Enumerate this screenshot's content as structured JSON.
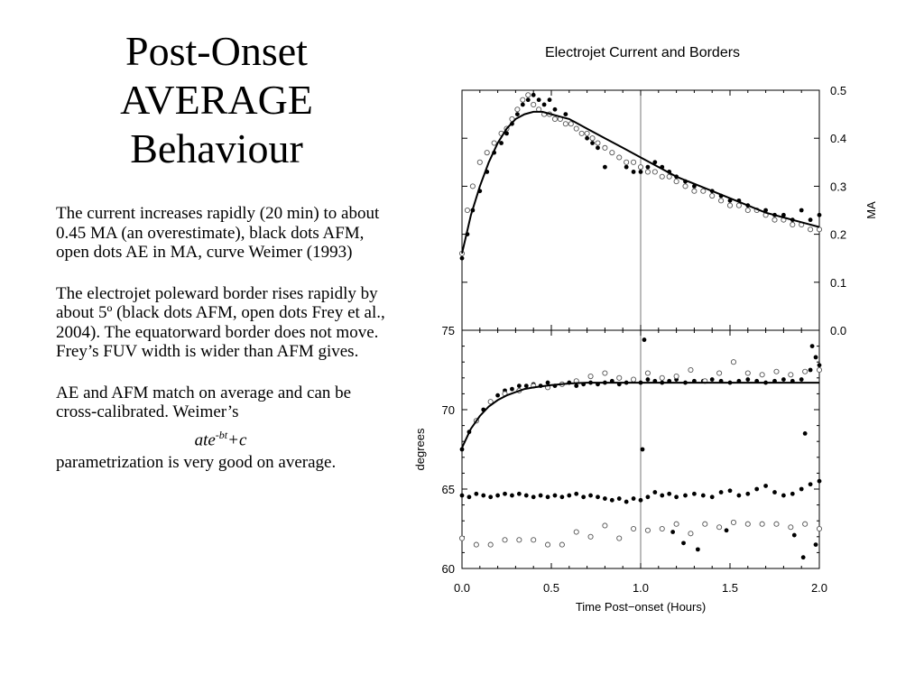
{
  "slide": {
    "title_lines": [
      "Post-Onset",
      "AVERAGE",
      "Behaviour"
    ],
    "paragraphs": [
      "The current increases rapidly (20 min) to about 0.45 MA (an overestimate), black dots AFM, open dots AE in MA, curve Weimer (1993)",
      "The electrojet poleward border rises rapidly by about 5º (black dots AFM, open dots Frey et al., 2004). The equatorward border does not move. Frey’s FUV width is wider than AFM gives.",
      "AE and AFM match on average and can be cross-calibrated. Weimer’s"
    ],
    "formula": {
      "base": "ate",
      "exponent": "-bt",
      "tail": "+c"
    },
    "closing": "parametrization is very good on average."
  },
  "chart_data": [
    {
      "type": "scatter",
      "title": "Electrojet Current and Borders",
      "ylabel": "MA",
      "ylabel_side": "right",
      "xlim": [
        0.0,
        2.0
      ],
      "ylim": [
        0.0,
        0.5
      ],
      "yticks": [
        "0.0",
        "0.1",
        "0.2",
        "0.3",
        "0.4",
        "0.5"
      ],
      "vline_x": 1.0,
      "series": [
        {
          "marker": "filled",
          "x": [
            0.0,
            0.03,
            0.06,
            0.1,
            0.14,
            0.18,
            0.22,
            0.25,
            0.28,
            0.31,
            0.34,
            0.37,
            0.4,
            0.43,
            0.46,
            0.49,
            0.52,
            0.55,
            0.58,
            0.61,
            0.64,
            0.67,
            0.7,
            0.73,
            0.76,
            0.8,
            0.84,
            0.88,
            0.92,
            0.96,
            1.0,
            1.04,
            1.08,
            1.12,
            1.16,
            1.2,
            1.25,
            1.3,
            1.35,
            1.4,
            1.45,
            1.5,
            1.55,
            1.6,
            1.65,
            1.7,
            1.75,
            1.8,
            1.85,
            1.9,
            1.95,
            2.0
          ],
          "y": [
            0.15,
            0.2,
            0.25,
            0.29,
            0.33,
            0.37,
            0.39,
            0.41,
            0.43,
            0.45,
            0.47,
            0.48,
            0.49,
            0.48,
            0.47,
            0.48,
            0.46,
            0.44,
            0.45,
            0.43,
            0.42,
            0.41,
            0.4,
            0.39,
            0.38,
            0.34,
            0.37,
            0.36,
            0.34,
            0.33,
            0.33,
            0.34,
            0.35,
            0.34,
            0.33,
            0.32,
            0.31,
            0.3,
            0.29,
            0.29,
            0.28,
            0.27,
            0.27,
            0.26,
            0.25,
            0.25,
            0.24,
            0.24,
            0.23,
            0.25,
            0.23,
            0.24
          ]
        },
        {
          "marker": "open",
          "x": [
            0.0,
            0.03,
            0.06,
            0.1,
            0.14,
            0.18,
            0.22,
            0.25,
            0.28,
            0.31,
            0.34,
            0.37,
            0.4,
            0.43,
            0.46,
            0.49,
            0.52,
            0.55,
            0.58,
            0.61,
            0.64,
            0.67,
            0.7,
            0.73,
            0.76,
            0.8,
            0.84,
            0.88,
            0.92,
            0.96,
            1.0,
            1.04,
            1.08,
            1.12,
            1.16,
            1.2,
            1.25,
            1.3,
            1.35,
            1.4,
            1.45,
            1.5,
            1.55,
            1.6,
            1.65,
            1.7,
            1.75,
            1.8,
            1.85,
            1.9,
            1.95,
            2.0
          ],
          "y": [
            0.16,
            0.25,
            0.3,
            0.35,
            0.37,
            0.39,
            0.41,
            0.42,
            0.44,
            0.46,
            0.48,
            0.49,
            0.47,
            0.46,
            0.45,
            0.45,
            0.44,
            0.44,
            0.43,
            0.43,
            0.42,
            0.41,
            0.41,
            0.4,
            0.39,
            0.38,
            0.37,
            0.36,
            0.35,
            0.35,
            0.34,
            0.33,
            0.33,
            0.32,
            0.32,
            0.31,
            0.3,
            0.29,
            0.29,
            0.28,
            0.27,
            0.26,
            0.26,
            0.25,
            0.25,
            0.24,
            0.23,
            0.23,
            0.22,
            0.22,
            0.21,
            0.21
          ]
        },
        {
          "marker": "line",
          "x": [
            0.0,
            0.05,
            0.1,
            0.15,
            0.2,
            0.25,
            0.3,
            0.35,
            0.4,
            0.45,
            0.5,
            0.55,
            0.6,
            0.7,
            0.8,
            0.9,
            1.0,
            1.1,
            1.2,
            1.3,
            1.4,
            1.5,
            1.6,
            1.7,
            1.8,
            1.9,
            2.0
          ],
          "y": [
            0.16,
            0.24,
            0.3,
            0.35,
            0.39,
            0.42,
            0.44,
            0.45,
            0.455,
            0.455,
            0.45,
            0.445,
            0.44,
            0.42,
            0.4,
            0.38,
            0.36,
            0.34,
            0.32,
            0.305,
            0.29,
            0.275,
            0.26,
            0.245,
            0.235,
            0.225,
            0.215
          ]
        }
      ]
    },
    {
      "type": "scatter",
      "xlabel": "Time Post−onset (Hours)",
      "ylabel": "degrees",
      "ylabel_side": "left",
      "xlim": [
        0.0,
        2.0
      ],
      "ylim": [
        60,
        75
      ],
      "xticks": [
        "0.0",
        "0.5",
        "1.0",
        "1.5",
        "2.0"
      ],
      "yticks": [
        "60",
        "65",
        "70",
        "75"
      ],
      "vline_x": 1.0,
      "series": [
        {
          "marker": "filled",
          "x": [
            0.0,
            0.04,
            0.08,
            0.12,
            0.16,
            0.2,
            0.24,
            0.28,
            0.32,
            0.36,
            0.4,
            0.44,
            0.48,
            0.52,
            0.56,
            0.6,
            0.64,
            0.68,
            0.72,
            0.76,
            0.8,
            0.84,
            0.88,
            0.92,
            0.96,
            1.0,
            1.04,
            1.08,
            1.12,
            1.16,
            1.2,
            1.25,
            1.3,
            1.35,
            1.4,
            1.45,
            1.5,
            1.55,
            1.6,
            1.65,
            1.7,
            1.75,
            1.8,
            1.85,
            1.9,
            1.95,
            2.0
          ],
          "y": [
            67.5,
            68.6,
            69.3,
            70.0,
            70.5,
            70.9,
            71.2,
            71.3,
            71.5,
            71.5,
            71.6,
            71.5,
            71.7,
            71.5,
            71.6,
            71.7,
            71.5,
            71.6,
            71.7,
            71.6,
            71.7,
            71.8,
            71.6,
            71.7,
            71.8,
            71.7,
            71.9,
            71.8,
            71.7,
            71.8,
            71.9,
            71.7,
            71.8,
            71.8,
            71.9,
            71.8,
            71.7,
            71.8,
            71.9,
            71.8,
            71.7,
            71.8,
            71.9,
            71.8,
            71.9,
            72.5,
            72.8
          ]
        },
        {
          "marker": "filled",
          "x": [
            1.02,
            1.92,
            1.96,
            1.98
          ],
          "y": [
            74.4,
            68.5,
            74.0,
            73.3
          ]
        },
        {
          "marker": "filled",
          "x": [
            0.0,
            0.04,
            0.08,
            0.12,
            0.16,
            0.2,
            0.24,
            0.28,
            0.32,
            0.36,
            0.4,
            0.44,
            0.48,
            0.52,
            0.56,
            0.6,
            0.64,
            0.68,
            0.72,
            0.76,
            0.8,
            0.84,
            0.88,
            0.92,
            0.96,
            1.0,
            1.04,
            1.08,
            1.12,
            1.16,
            1.2,
            1.25,
            1.3,
            1.35,
            1.4,
            1.45,
            1.5,
            1.55,
            1.6,
            1.65,
            1.7,
            1.75,
            1.8,
            1.85,
            1.9,
            1.95,
            2.0
          ],
          "y": [
            64.6,
            64.5,
            64.7,
            64.6,
            64.5,
            64.6,
            64.7,
            64.6,
            64.7,
            64.6,
            64.5,
            64.6,
            64.5,
            64.6,
            64.5,
            64.6,
            64.7,
            64.5,
            64.6,
            64.5,
            64.4,
            64.3,
            64.4,
            64.2,
            64.4,
            64.3,
            64.5,
            64.8,
            64.6,
            64.7,
            64.5,
            64.6,
            64.7,
            64.6,
            64.5,
            64.8,
            64.9,
            64.6,
            64.7,
            65.0,
            65.2,
            64.8,
            64.6,
            64.7,
            65.0,
            65.3,
            65.5
          ]
        },
        {
          "marker": "filled",
          "x": [
            1.01,
            1.18,
            1.24,
            1.32,
            1.48,
            1.86,
            1.91,
            1.98
          ],
          "y": [
            67.5,
            62.3,
            61.6,
            61.2,
            62.4,
            62.1,
            60.7,
            61.5
          ]
        },
        {
          "marker": "open",
          "x": [
            0.0,
            0.08,
            0.16,
            0.24,
            0.32,
            0.4,
            0.48,
            0.56,
            0.64,
            0.72,
            0.8,
            0.88,
            0.96,
            1.04,
            1.12,
            1.2,
            1.28,
            1.36,
            1.44,
            1.52,
            1.6,
            1.68,
            1.76,
            1.84,
            1.92,
            2.0
          ],
          "y": [
            61.9,
            61.5,
            61.5,
            61.8,
            61.8,
            61.8,
            61.5,
            61.5,
            62.3,
            62.0,
            62.7,
            61.9,
            62.5,
            62.4,
            62.5,
            62.8,
            62.2,
            62.8,
            62.6,
            62.9,
            62.8,
            62.8,
            62.8,
            62.6,
            62.8,
            62.5
          ]
        },
        {
          "marker": "open",
          "x": [
            0.08,
            0.16,
            0.24,
            0.32,
            0.4,
            0.48,
            0.56,
            0.64,
            0.72,
            0.8,
            0.88,
            0.96,
            1.04,
            1.12,
            1.2,
            1.28,
            1.36,
            1.44,
            1.52,
            1.6,
            1.68,
            1.76,
            1.84,
            1.92,
            2.0
          ],
          "y": [
            69.3,
            70.5,
            71.0,
            71.2,
            71.5,
            71.4,
            71.6,
            71.8,
            72.1,
            72.3,
            72.0,
            71.9,
            72.3,
            72.0,
            72.1,
            72.5,
            71.8,
            72.3,
            73.0,
            72.3,
            72.2,
            72.4,
            72.2,
            72.4,
            72.5
          ]
        },
        {
          "marker": "line",
          "x": [
            0.0,
            0.05,
            0.1,
            0.15,
            0.2,
            0.25,
            0.3,
            0.35,
            0.4,
            0.5,
            0.6,
            0.7,
            0.8,
            0.9,
            1.0,
            1.2,
            1.4,
            1.6,
            1.8,
            2.0
          ],
          "y": [
            67.6,
            68.8,
            69.6,
            70.2,
            70.6,
            70.9,
            71.1,
            71.3,
            71.4,
            71.55,
            71.65,
            71.7,
            71.7,
            71.7,
            71.7,
            71.7,
            71.7,
            71.7,
            71.7,
            71.7
          ]
        }
      ]
    }
  ]
}
